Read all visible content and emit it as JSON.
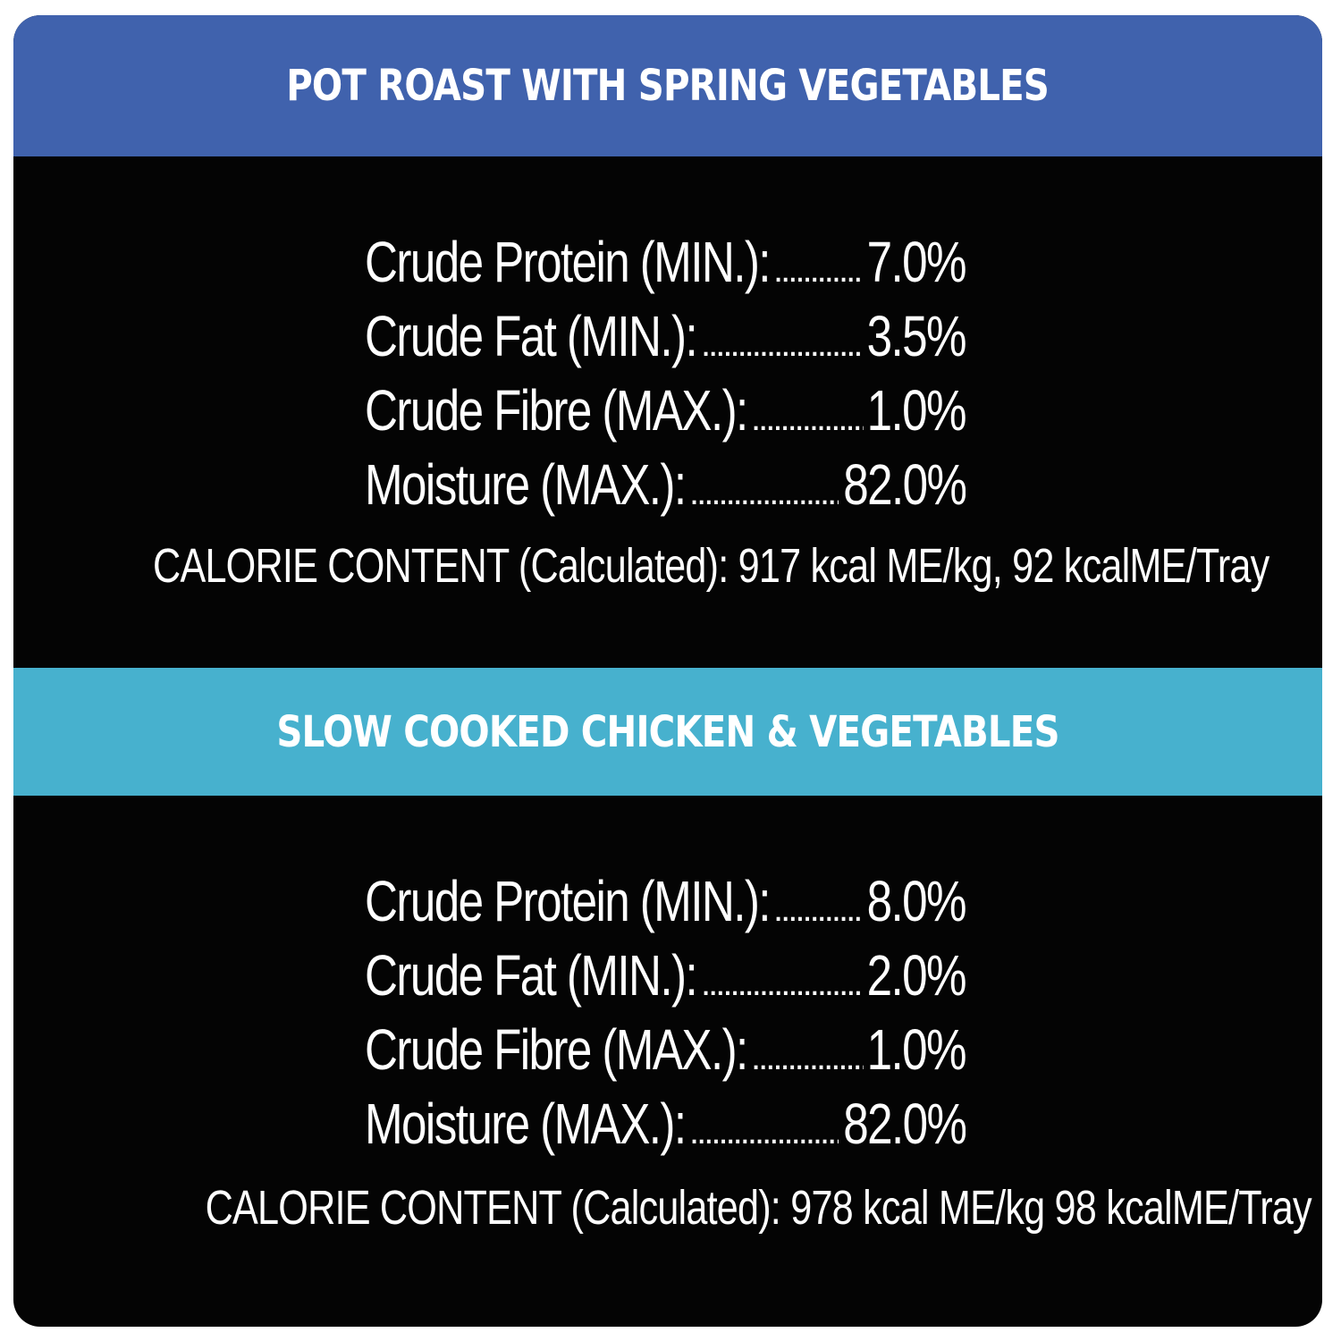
{
  "products": [
    {
      "title": "POT ROAST WITH SPRING VEGETABLES",
      "analysis": [
        {
          "label": "Crude Protein (MIN.):",
          "leader": "..............................",
          "value": "7.0%"
        },
        {
          "label": "Crude Fat (MIN.):",
          "leader": "....................................................",
          "value": "3.5%"
        },
        {
          "label": "Crude Fibre (MAX.):",
          "leader": "...........................................",
          "value": "1.0%"
        },
        {
          "label": "Moisture (MAX.):",
          "leader": "..................................................",
          "value": "82.0%"
        }
      ],
      "calorie": "CALORIE CONTENT (Calculated): 917 kcal ME/kg, 92 kcalME/Tray"
    },
    {
      "title": "SLOW COOKED CHICKEN & VEGETABLES",
      "analysis": [
        {
          "label": "Crude Protein (MIN.):",
          "leader": "............................",
          "value": "8.0%"
        },
        {
          "label": "Crude Fat (MIN.):",
          "leader": "..................................................",
          "value": "2.0%"
        },
        {
          "label": "Crude Fibre (MAX.):",
          "leader": ".........................................",
          "value": "1.0%"
        },
        {
          "label": "Moisture (MAX.):",
          "leader": "...................................................",
          "value": "82.0%"
        }
      ],
      "calorie": "CALORIE CONTENT (Calculated): 978 kcal ME/kg 98 kcalME/Tray"
    }
  ]
}
